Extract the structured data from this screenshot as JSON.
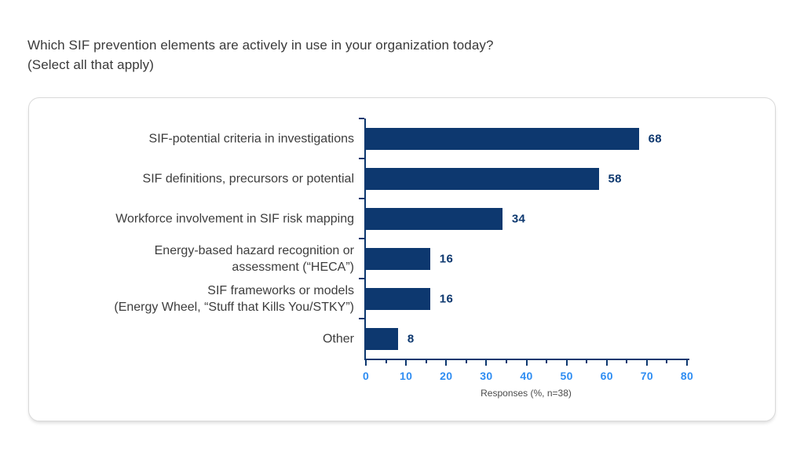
{
  "header": {
    "title": "Which SIF prevention elements are actively in use in your organization today?\n(Select all that apply)"
  },
  "chart_data": {
    "type": "bar",
    "orientation": "horizontal",
    "categories": [
      "SIF-potential criteria in investigations",
      "SIF definitions, precursors or potential",
      "Workforce involvement in SIF risk mapping",
      "Energy-based hazard recognition or\nassessment (“HECA”)",
      "SIF frameworks or models\n(Energy Wheel, “Stuff that Kills You/STKY”)",
      "Other"
    ],
    "values": [
      68,
      58,
      34,
      16,
      16,
      8
    ],
    "xlabel": "Responses (%, n=38)",
    "xlim": [
      0,
      80
    ],
    "xticks": [
      0,
      10,
      20,
      30,
      40,
      50,
      60,
      70,
      80
    ],
    "minor_tick_step": 5,
    "grid": false,
    "legend": "none",
    "bar_color": "#0d386f",
    "axis_color": "#0d386f",
    "value_label_color": "#0d386f",
    "tick_label_color": "#2f8df2",
    "category_label_color": "#3d3d3d",
    "xlabel_color": "#4a4a4a"
  }
}
